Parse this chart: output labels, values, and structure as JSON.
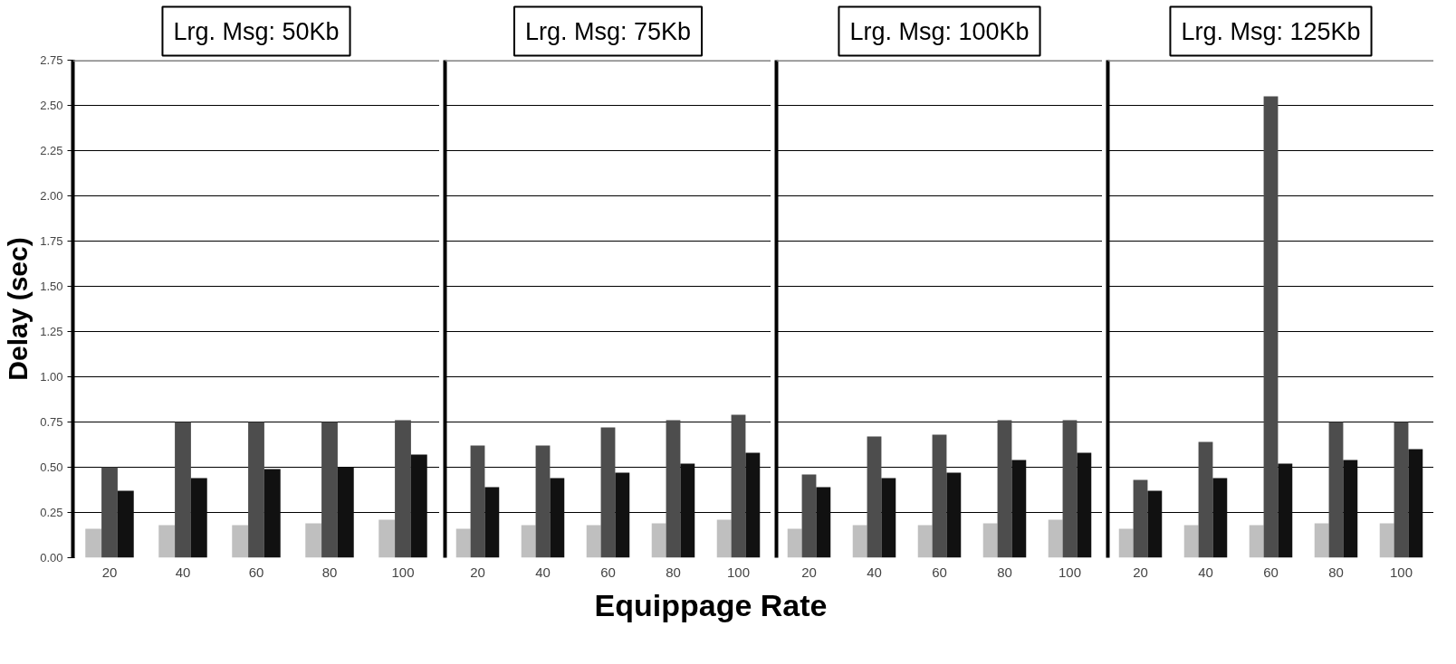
{
  "chart_data": [
    {
      "type": "bar",
      "title": "Lrg. Msg: 50Kb",
      "ylabel": "Delay (sec)",
      "xlabel": "Equippage Rate",
      "categories": [
        "20",
        "40",
        "60",
        "80",
        "100"
      ],
      "series": [
        {
          "color": "#bfbfbf",
          "values": [
            0.16,
            0.18,
            0.18,
            0.19,
            0.21
          ]
        },
        {
          "color": "#4d4d4d",
          "values": [
            0.5,
            0.75,
            0.75,
            0.75,
            0.76
          ]
        },
        {
          "color": "#111111",
          "values": [
            0.37,
            0.44,
            0.49,
            0.5,
            0.57
          ]
        }
      ],
      "ylim": [
        0,
        2.75
      ],
      "yticks": [
        {
          "value": 0,
          "label": "0.00"
        },
        {
          "value": 0.25,
          "label": "0.25"
        },
        {
          "value": 0.5,
          "label": "0.50"
        },
        {
          "value": 0.75,
          "label": "0.75"
        },
        {
          "value": 1,
          "label": "1.00"
        },
        {
          "value": 1.25,
          "label": "1.25"
        },
        {
          "value": 1.5,
          "label": "1.50"
        },
        {
          "value": 1.75,
          "label": "1.75"
        },
        {
          "value": 2,
          "label": "2.00"
        },
        {
          "value": 2.25,
          "label": "2.25"
        },
        {
          "value": 2.5,
          "label": "2.50"
        },
        {
          "value": 2.75,
          "label": "2.75"
        }
      ],
      "grid": "y",
      "ref_lines": [
        {
          "axis": "y",
          "value": 2.75,
          "color": "#808080"
        }
      ]
    },
    {
      "type": "bar",
      "title": "Lrg. Msg: 75Kb",
      "categories": [
        "20",
        "40",
        "60",
        "80",
        "100"
      ],
      "series": [
        {
          "color": "#bfbfbf",
          "values": [
            0.16,
            0.18,
            0.18,
            0.19,
            0.21
          ]
        },
        {
          "color": "#4d4d4d",
          "values": [
            0.62,
            0.62,
            0.72,
            0.76,
            0.79
          ]
        },
        {
          "color": "#111111",
          "values": [
            0.39,
            0.44,
            0.47,
            0.52,
            0.58
          ]
        }
      ],
      "ylim": [
        0,
        2.75
      ],
      "yticks": [
        {
          "value": 0,
          "label": null
        },
        {
          "value": 0.25,
          "label": null
        },
        {
          "value": 0.5,
          "label": null
        },
        {
          "value": 0.75,
          "label": null
        },
        {
          "value": 1,
          "label": null
        },
        {
          "value": 1.25,
          "label": null
        },
        {
          "value": 1.5,
          "label": null
        },
        {
          "value": 1.75,
          "label": null
        },
        {
          "value": 2,
          "label": null
        },
        {
          "value": 2.25,
          "label": null
        },
        {
          "value": 2.5,
          "label": null
        },
        {
          "value": 2.75,
          "label": null
        }
      ],
      "grid": "y",
      "tick_labels": "x",
      "ref_lines": [
        {
          "axis": "y",
          "value": 2.75,
          "color": "#808080"
        }
      ]
    },
    {
      "type": "bar",
      "title": "Lrg. Msg: 100Kb",
      "categories": [
        "20",
        "40",
        "60",
        "80",
        "100"
      ],
      "series": [
        {
          "color": "#bfbfbf",
          "values": [
            0.16,
            0.18,
            0.18,
            0.19,
            0.21
          ]
        },
        {
          "color": "#4d4d4d",
          "values": [
            0.46,
            0.67,
            0.68,
            0.76,
            0.76
          ]
        },
        {
          "color": "#111111",
          "values": [
            0.39,
            0.44,
            0.47,
            0.54,
            0.58
          ]
        }
      ],
      "ylim": [
        0,
        2.75
      ],
      "yticks": [
        {
          "value": 0,
          "label": null
        },
        {
          "value": 0.25,
          "label": null
        },
        {
          "value": 0.5,
          "label": null
        },
        {
          "value": 0.75,
          "label": null
        },
        {
          "value": 1,
          "label": null
        },
        {
          "value": 1.25,
          "label": null
        },
        {
          "value": 1.5,
          "label": null
        },
        {
          "value": 1.75,
          "label": null
        },
        {
          "value": 2,
          "label": null
        },
        {
          "value": 2.25,
          "label": null
        },
        {
          "value": 2.5,
          "label": null
        },
        {
          "value": 2.75,
          "label": null
        }
      ],
      "grid": "y",
      "tick_labels": "x",
      "ref_lines": [
        {
          "axis": "y",
          "value": 2.75,
          "color": "#808080"
        }
      ]
    },
    {
      "type": "bar",
      "title": "Lrg. Msg: 125Kb",
      "categories": [
        "20",
        "40",
        "60",
        "80",
        "100"
      ],
      "series": [
        {
          "color": "#bfbfbf",
          "values": [
            0.16,
            0.18,
            0.18,
            0.19,
            0.19
          ]
        },
        {
          "color": "#4d4d4d",
          "values": [
            0.43,
            0.64,
            2.55,
            0.75,
            0.75
          ]
        },
        {
          "color": "#111111",
          "values": [
            0.37,
            0.44,
            0.52,
            0.54,
            0.6
          ]
        }
      ],
      "ylim": [
        0,
        2.75
      ],
      "yticks": [
        {
          "value": 0,
          "label": null
        },
        {
          "value": 0.25,
          "label": null
        },
        {
          "value": 0.5,
          "label": null
        },
        {
          "value": 0.75,
          "label": null
        },
        {
          "value": 1,
          "label": null
        },
        {
          "value": 1.25,
          "label": null
        },
        {
          "value": 1.5,
          "label": null
        },
        {
          "value": 1.75,
          "label": null
        },
        {
          "value": 2,
          "label": null
        },
        {
          "value": 2.25,
          "label": null
        },
        {
          "value": 2.5,
          "label": null
        },
        {
          "value": 2.75,
          "label": null
        }
      ],
      "grid": "y",
      "tick_labels": "x",
      "ref_lines": [
        {
          "axis": "y",
          "value": 2.75,
          "color": "#808080"
        }
      ]
    }
  ]
}
